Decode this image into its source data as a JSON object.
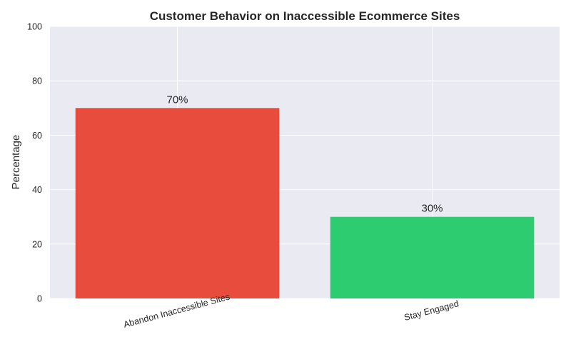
{
  "chart_data": {
    "type": "bar",
    "title": "Customer Behavior on Inaccessible Ecommerce Sites",
    "xlabel": "",
    "ylabel": "Percentage",
    "ylim": [
      0,
      100
    ],
    "yticks": [
      0,
      20,
      40,
      60,
      80,
      100
    ],
    "categories": [
      "Abandon Inaccessible Sites",
      "Stay Engaged"
    ],
    "values": [
      70,
      30
    ],
    "data_labels": [
      "70%",
      "30%"
    ],
    "colors": [
      "#e74c3c",
      "#2ecc71"
    ],
    "grid": true,
    "plot_background": "#eaeaf2",
    "grid_color": "#ffffff"
  }
}
